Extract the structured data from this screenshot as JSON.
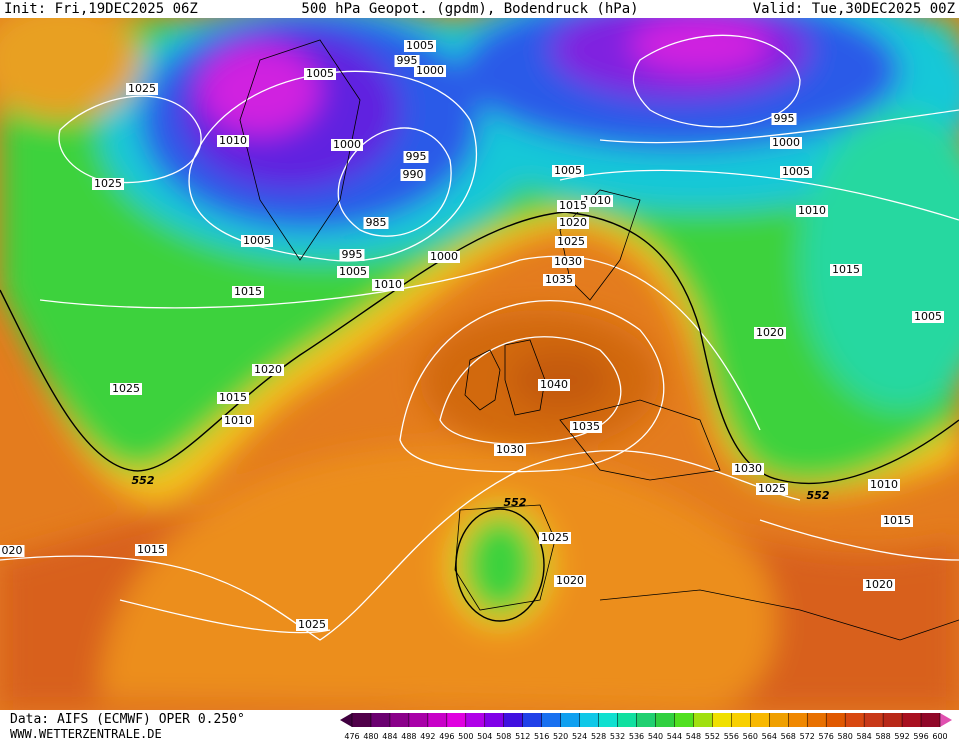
{
  "header": {
    "init": "Init: Fri,19DEC2025 06Z",
    "title": "500 hPa Geopot. (gpdm), Bodendruck (hPa)",
    "valid": "Valid: Tue,30DEC2025 00Z"
  },
  "isobar_labels": [
    "1005",
    "995",
    "1005",
    "1000",
    "1025",
    "1010",
    "1000",
    "995",
    "990",
    "1025",
    "1005",
    "1010",
    "1015",
    "985",
    "1020",
    "1005",
    "1025",
    "995",
    "1000",
    "1030",
    "1005",
    "1010",
    "1035",
    "1015",
    "995",
    "1000",
    "1005",
    "1010",
    "1015",
    "1020",
    "1005",
    "1020",
    "1025",
    "1040",
    "1015",
    "1010",
    "1035",
    "1030",
    "1030",
    "1025",
    "1010",
    "1015",
    "020",
    "1015",
    "1025",
    "1020",
    "1020",
    "1025"
  ],
  "contour_labels": [
    "552",
    "552",
    "552"
  ],
  "footer": {
    "source": "Data: AIFS (ECMWF) OPER 0.250°",
    "url": "WWW.WETTERZENTRALE.DE"
  },
  "colorbar": {
    "ticks": [
      476,
      480,
      484,
      488,
      492,
      496,
      500,
      504,
      508,
      512,
      516,
      520,
      524,
      528,
      532,
      536,
      540,
      544,
      548,
      552,
      556,
      560,
      564,
      568,
      572,
      576,
      580,
      584,
      588,
      592,
      596,
      600
    ]
  }
}
